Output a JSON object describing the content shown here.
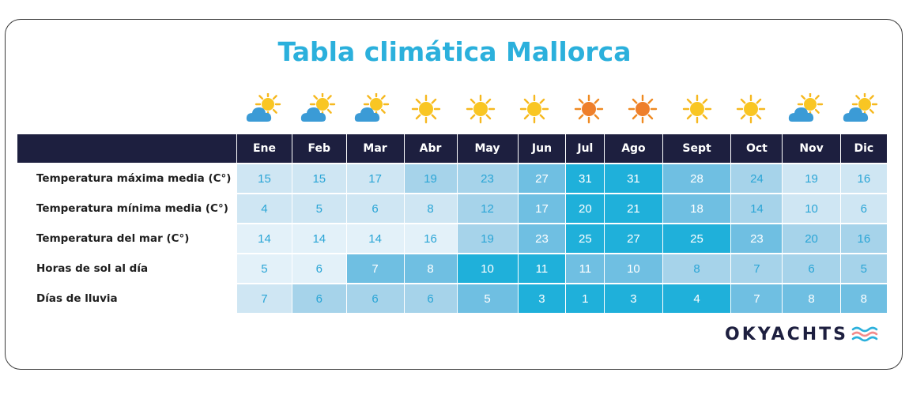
{
  "title": "Tabla climática Mallorca",
  "months": [
    "Ene",
    "Feb",
    "Mar",
    "Abr",
    "May",
    "Jun",
    "Jul",
    "Ago",
    "Sept",
    "Oct",
    "Nov",
    "Dic"
  ],
  "weather_icons": [
    "sun-cloud-icon",
    "sun-cloud-icon",
    "sun-cloud-icon",
    "sun-icon",
    "sun-icon",
    "sun-icon",
    "hot-sun-icon",
    "hot-sun-icon",
    "sun-icon",
    "sun-icon",
    "sun-cloud-icon",
    "sun-cloud-icon"
  ],
  "rows": [
    {
      "label": "Temperatura máxima media (C°)",
      "values": [
        "15",
        "15",
        "17",
        "19",
        "23",
        "27",
        "31",
        "31",
        "28",
        "24",
        "19",
        "16"
      ]
    },
    {
      "label": "Temperatura mínima media (C°)",
      "values": [
        "4",
        "5",
        "6",
        "8",
        "12",
        "17",
        "20",
        "21",
        "18",
        "14",
        "10",
        "6"
      ]
    },
    {
      "label": "Temperatura del mar (C°)",
      "values": [
        "14",
        "14",
        "14",
        "16",
        "19",
        "23",
        "25",
        "27",
        "25",
        "23",
        "20",
        "16"
      ]
    },
    {
      "label": "Horas de sol al día",
      "values": [
        "5",
        "6",
        "7",
        "8",
        "10",
        "11",
        "11",
        "10",
        "8",
        "7",
        "6",
        "5"
      ]
    },
    {
      "label": "Días de lluvia",
      "values": [
        "7",
        "6",
        "6",
        "6",
        "5",
        "3",
        "1",
        "3",
        "4",
        "7",
        "8",
        "8"
      ]
    }
  ],
  "cell_colors": [
    [
      "#cfe6f3",
      "#cfe6f3",
      "#cfe6f3",
      "#a6d3ea",
      "#a6d3ea",
      "#6fbfe2",
      "#1fb0da",
      "#1fb0da",
      "#6fbfe2",
      "#a6d3ea",
      "#cfe6f3",
      "#cfe6f3"
    ],
    [
      "#cfe6f3",
      "#cfe6f3",
      "#cfe6f3",
      "#cfe6f3",
      "#a6d3ea",
      "#6fbfe2",
      "#1fb0da",
      "#1fb0da",
      "#6fbfe2",
      "#a6d3ea",
      "#cfe6f3",
      "#cfe6f3"
    ],
    [
      "#e3f1f9",
      "#e3f1f9",
      "#e3f1f9",
      "#e3f1f9",
      "#a6d3ea",
      "#6fbfe2",
      "#1fb0da",
      "#1fb0da",
      "#1fb0da",
      "#6fbfe2",
      "#a6d3ea",
      "#a6d3ea"
    ],
    [
      "#e3f1f9",
      "#e3f1f9",
      "#6fbfe2",
      "#6fbfe2",
      "#1fb0da",
      "#1fb0da",
      "#6fbfe2",
      "#6fbfe2",
      "#a6d3ea",
      "#a6d3ea",
      "#a6d3ea",
      "#a6d3ea"
    ],
    [
      "#cfe6f3",
      "#a6d3ea",
      "#a6d3ea",
      "#a6d3ea",
      "#6fbfe2",
      "#1fb0da",
      "#1fb0da",
      "#1fb0da",
      "#1fb0da",
      "#6fbfe2",
      "#6fbfe2",
      "#6fbfe2"
    ]
  ],
  "text_colors": {
    "light": "#2aa5d6",
    "dark": "#ffffff"
  },
  "logo": {
    "text": "OKYACHTS"
  },
  "colors": {
    "title": "#2bb0dc",
    "header_bg": "#1d1f3f",
    "logo_dark": "#1d1f3f",
    "logo_wave_blue": "#2bb0dc",
    "logo_wave_pink": "#f28b8b"
  }
}
